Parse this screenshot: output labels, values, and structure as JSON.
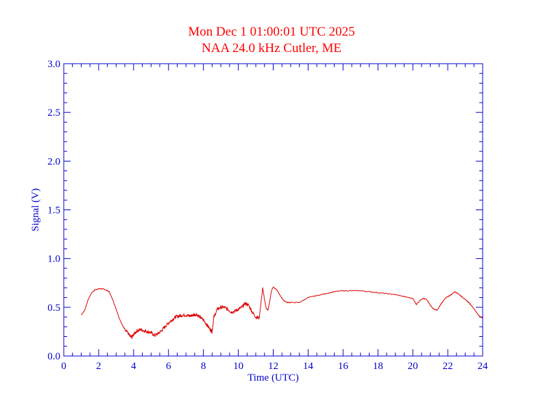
{
  "colors": {
    "title": "#ff0000",
    "axis": "#0000cc",
    "series": "#dd0000",
    "background": "#ffffff"
  },
  "chart_data": {
    "type": "line",
    "title": "Mon Dec 1 01:00:01 UTC 2025",
    "subtitle": "NAA 24.0 kHz Cutler, ME",
    "xlabel": "Time (UTC)",
    "ylabel": "Signal (V)",
    "xlim": [
      0,
      24
    ],
    "ylim": [
      0,
      3.0
    ],
    "xticks": [
      "0",
      "2",
      "4",
      "6",
      "8",
      "10",
      "12",
      "14",
      "16",
      "18",
      "20",
      "22",
      "24"
    ],
    "yticks": [
      "0.0",
      "0.5",
      "1.0",
      "1.5",
      "2.0",
      "2.5",
      "3.0"
    ],
    "grid": false,
    "series": [
      {
        "x": [
          1.0,
          1.2,
          1.4,
          1.6,
          1.8,
          2.0,
          2.2,
          2.4,
          2.6,
          2.8,
          3.0,
          3.2,
          3.4,
          3.6,
          3.8,
          3.9,
          4.0,
          4.2,
          4.4,
          4.6,
          4.8,
          5.0,
          5.2,
          5.4,
          5.6,
          5.8,
          6.0,
          6.2,
          6.4,
          6.6,
          6.8,
          7.0,
          7.2,
          7.4,
          7.6,
          7.8,
          8.0,
          8.2,
          8.4,
          8.5,
          8.6,
          8.8,
          9.0,
          9.2,
          9.4,
          9.6,
          9.8,
          10.0,
          10.2,
          10.4,
          10.6,
          10.8,
          11.0,
          11.2,
          11.3,
          11.4,
          11.5,
          11.6,
          11.7,
          11.8,
          11.9,
          12.0,
          12.2,
          12.4,
          12.6,
          12.8,
          13.0,
          13.5,
          14.0,
          14.5,
          15.0,
          15.5,
          16.0,
          16.5,
          17.0,
          17.5,
          18.0,
          18.5,
          19.0,
          19.5,
          20.0,
          20.2,
          20.4,
          20.6,
          20.8,
          21.0,
          21.2,
          21.4,
          21.6,
          21.8,
          22.0,
          22.2,
          22.4,
          22.6,
          22.8,
          23.0,
          23.2,
          23.4,
          23.6,
          23.8,
          24.0
        ],
        "y": [
          0.42,
          0.47,
          0.58,
          0.65,
          0.68,
          0.69,
          0.69,
          0.68,
          0.66,
          0.58,
          0.48,
          0.38,
          0.3,
          0.26,
          0.2,
          0.19,
          0.22,
          0.26,
          0.27,
          0.26,
          0.25,
          0.24,
          0.21,
          0.23,
          0.26,
          0.3,
          0.34,
          0.37,
          0.4,
          0.41,
          0.42,
          0.42,
          0.41,
          0.42,
          0.43,
          0.4,
          0.37,
          0.32,
          0.27,
          0.25,
          0.4,
          0.48,
          0.5,
          0.5,
          0.48,
          0.45,
          0.46,
          0.48,
          0.5,
          0.54,
          0.52,
          0.45,
          0.4,
          0.39,
          0.55,
          0.7,
          0.58,
          0.49,
          0.47,
          0.56,
          0.67,
          0.71,
          0.68,
          0.62,
          0.57,
          0.55,
          0.55,
          0.55,
          0.6,
          0.62,
          0.64,
          0.66,
          0.67,
          0.67,
          0.67,
          0.66,
          0.65,
          0.64,
          0.63,
          0.61,
          0.59,
          0.53,
          0.57,
          0.59,
          0.58,
          0.52,
          0.48,
          0.47,
          0.53,
          0.58,
          0.61,
          0.63,
          0.66,
          0.64,
          0.61,
          0.58,
          0.55,
          0.51,
          0.46,
          0.41,
          0.39
        ]
      }
    ]
  }
}
